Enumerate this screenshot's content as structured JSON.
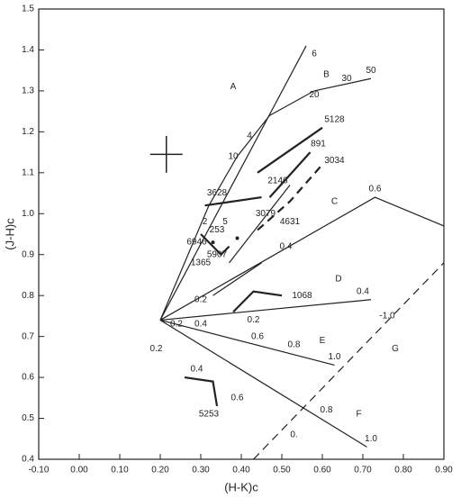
{
  "chart_data": {
    "type": "line",
    "xlabel": "(H-K)c",
    "ylabel": "(J-H)c",
    "xlim": [
      -0.1,
      0.9
    ],
    "ylim": [
      0.4,
      1.5
    ],
    "xticks": [
      {
        "value": -0.1,
        "label": "-0.10"
      },
      {
        "value": 0,
        "label": "0.00"
      },
      {
        "value": 0.1,
        "label": "0.10"
      },
      {
        "value": 0.2,
        "label": "0.20"
      },
      {
        "value": 0.3,
        "label": "0.30"
      },
      {
        "value": 0.4,
        "label": "0.40"
      },
      {
        "value": 0.5,
        "label": "0.50"
      },
      {
        "value": 0.6,
        "label": "0.60"
      },
      {
        "value": 0.7,
        "label": "0.70"
      },
      {
        "value": 0.8,
        "label": "0.80"
      },
      {
        "value": 0.9,
        "label": "0.90"
      }
    ],
    "yticks": [
      0.4,
      0.5,
      0.6,
      0.7,
      0.8,
      0.9,
      {
        "value": 1,
        "label": "1.0"
      },
      1.1,
      1.2,
      1.3,
      1.4,
      1.5
    ],
    "color": "#222222",
    "series": [
      {
        "x": [
          0.2,
          0.56
        ],
        "y": [
          0.74,
          1.41
        ]
      },
      {
        "x": [
          0.2,
          0.32,
          0.39,
          0.47,
          0.58,
          0.72
        ],
        "y": [
          0.74,
          1.02,
          1.14,
          1.24,
          1.3,
          1.33
        ]
      },
      {
        "x": [
          0.44,
          0.6
        ],
        "y": [
          1.1,
          1.21
        ],
        "thick": true
      },
      {
        "x": [
          0.47,
          0.57
        ],
        "y": [
          1.04,
          1.15
        ],
        "thick": true
      },
      {
        "x": [
          0.44,
          0.52,
          0.6
        ],
        "y": [
          0.96,
          1.03,
          1.12
        ],
        "dashed": true,
        "thick": true
      },
      {
        "x": [
          0.37,
          0.52
        ],
        "y": [
          0.88,
          1.07
        ]
      },
      {
        "x": [
          0.31,
          0.45
        ],
        "y": [
          1.02,
          1.04
        ],
        "thick": true
      },
      {
        "x": [
          0.3,
          0.35,
          0.37
        ],
        "y": [
          0.95,
          0.9,
          0.92
        ],
        "thick": true
      },
      {
        "x": [
          0.2,
          0.73,
          0.9
        ],
        "y": [
          0.74,
          1.04,
          0.97
        ]
      },
      {
        "x": [
          0.33,
          0.45
        ],
        "y": [
          0.8,
          0.88
        ]
      },
      {
        "x": [
          0.38,
          0.43,
          0.5
        ],
        "y": [
          0.76,
          0.81,
          0.8
        ],
        "thick": true
      },
      {
        "x": [
          0.2,
          0.72
        ],
        "y": [
          0.74,
          0.79
        ]
      },
      {
        "x": [
          0.2,
          0.63
        ],
        "y": [
          0.74,
          0.63
        ]
      },
      {
        "x": [
          0.2,
          0.71
        ],
        "y": [
          0.74,
          0.43
        ]
      },
      {
        "x": [
          0.43,
          0.9
        ],
        "y": [
          0.4,
          0.88
        ],
        "dashed": true
      },
      {
        "x": [
          0.26,
          0.33,
          0.34
        ],
        "y": [
          0.6,
          0.59,
          0.53
        ],
        "thick": true
      }
    ],
    "points": {
      "x": [
        0.39,
        0.33
      ],
      "y": [
        0.94,
        0.93
      ]
    },
    "error_bar": {
      "x": 0.215,
      "y": 1.145,
      "xerr": 0.04,
      "yerr": 0.045
    },
    "annotations": [
      {
        "text": "6",
        "x": 0.58,
        "y": 1.39
      },
      {
        "text": "A",
        "x": 0.38,
        "y": 1.31
      },
      {
        "text": "B",
        "x": 0.61,
        "y": 1.34
      },
      {
        "text": "50",
        "x": 0.72,
        "y": 1.35
      },
      {
        "text": "30",
        "x": 0.66,
        "y": 1.33
      },
      {
        "text": "20",
        "x": 0.58,
        "y": 1.29
      },
      {
        "text": "4",
        "x": 0.42,
        "y": 1.19
      },
      {
        "text": "10",
        "x": 0.38,
        "y": 1.14
      },
      {
        "text": "5128",
        "x": 0.63,
        "y": 1.23
      },
      {
        "text": "891",
        "x": 0.59,
        "y": 1.17
      },
      {
        "text": "3034",
        "x": 0.63,
        "y": 1.13
      },
      {
        "text": "2146",
        "x": 0.49,
        "y": 1.08
      },
      {
        "text": "3628",
        "x": 0.34,
        "y": 1.05
      },
      {
        "text": "2",
        "x": 0.31,
        "y": 0.98
      },
      {
        "text": "5",
        "x": 0.36,
        "y": 0.98
      },
      {
        "text": "3079",
        "x": 0.46,
        "y": 1.0
      },
      {
        "text": "253",
        "x": 0.34,
        "y": 0.96
      },
      {
        "text": "4631",
        "x": 0.52,
        "y": 0.98
      },
      {
        "text": "6946",
        "x": 0.29,
        "y": 0.93
      },
      {
        "text": "5907",
        "x": 0.34,
        "y": 0.9
      },
      {
        "text": "C",
        "x": 0.63,
        "y": 1.03
      },
      {
        "text": "0.6",
        "x": 0.73,
        "y": 1.06
      },
      {
        "text": "0.4",
        "x": 0.51,
        "y": 0.92
      },
      {
        "text": "1365",
        "x": 0.3,
        "y": 0.88
      },
      {
        "text": "0.2",
        "x": 0.3,
        "y": 0.79
      },
      {
        "text": "1068",
        "x": 0.55,
        "y": 0.8
      },
      {
        "text": "D",
        "x": 0.64,
        "y": 0.84
      },
      {
        "text": "0.4",
        "x": 0.7,
        "y": 0.81
      },
      {
        "text": "0.2",
        "x": 0.43,
        "y": 0.74
      },
      {
        "text": "-1.0",
        "x": 0.76,
        "y": 0.75
      },
      {
        "text": "0.2",
        "x": 0.24,
        "y": 0.73
      },
      {
        "text": "0.4",
        "x": 0.3,
        "y": 0.73
      },
      {
        "text": "0.6",
        "x": 0.44,
        "y": 0.7
      },
      {
        "text": "E",
        "x": 0.6,
        "y": 0.69
      },
      {
        "text": "0.8",
        "x": 0.53,
        "y": 0.68
      },
      {
        "text": "1.0",
        "x": 0.63,
        "y": 0.65
      },
      {
        "text": "G",
        "x": 0.78,
        "y": 0.67
      },
      {
        "text": "0.2",
        "x": 0.19,
        "y": 0.67
      },
      {
        "text": "0.4",
        "x": 0.29,
        "y": 0.62
      },
      {
        "text": "0.6",
        "x": 0.39,
        "y": 0.55
      },
      {
        "text": "0.8",
        "x": 0.61,
        "y": 0.52
      },
      {
        "text": "F",
        "x": 0.69,
        "y": 0.51
      },
      {
        "text": "0.",
        "x": 0.53,
        "y": 0.46
      },
      {
        "text": "1.0",
        "x": 0.72,
        "y": 0.45
      },
      {
        "text": "5253",
        "x": 0.32,
        "y": 0.51
      }
    ]
  }
}
